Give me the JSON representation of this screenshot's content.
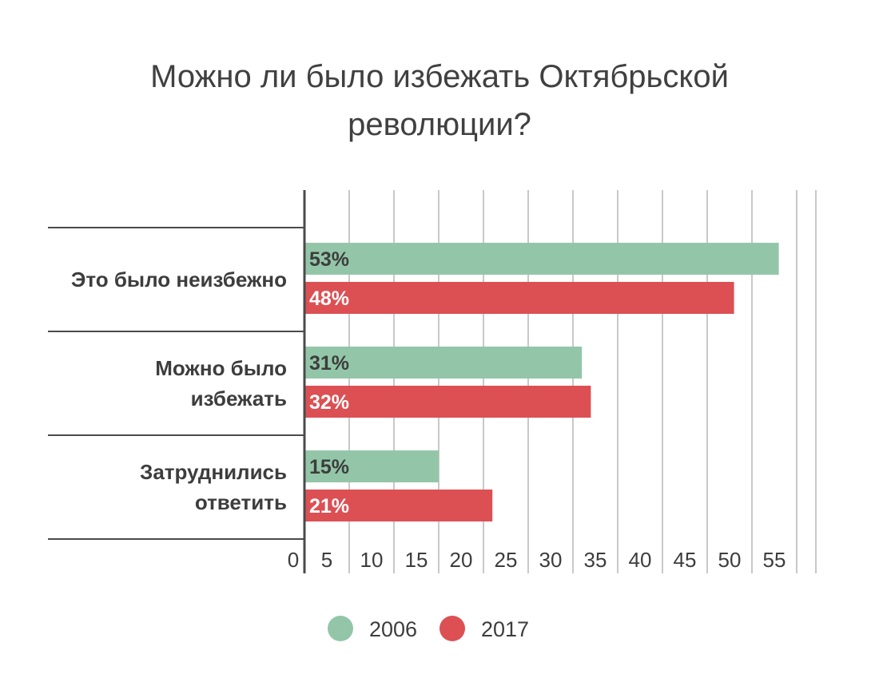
{
  "chart_data": {
    "type": "bar",
    "orientation": "horizontal",
    "title_lines": [
      "Можно ли было избежать Октябрьской",
      "революции?"
    ],
    "categories": [
      [
        "Это было неизбежно"
      ],
      [
        "Можно было",
        "избежать"
      ],
      [
        "Затруднились",
        "ответить"
      ]
    ],
    "series": [
      {
        "name": "2006",
        "values": [
          53,
          31,
          15
        ],
        "labels": [
          "53%",
          "31%",
          "15%"
        ],
        "color": "#93c6a8",
        "label_color": "#3d3d3d"
      },
      {
        "name": "2017",
        "values": [
          48,
          32,
          21
        ],
        "labels": [
          "48%",
          "32%",
          "21%"
        ],
        "color": "#dc5054",
        "label_color": "#ffffff"
      }
    ],
    "xlim": [
      0,
      55
    ],
    "xticks": [
      0,
      5,
      10,
      15,
      20,
      25,
      30,
      35,
      40,
      45,
      50,
      55
    ],
    "grid": true,
    "legend_position": "bottom"
  }
}
